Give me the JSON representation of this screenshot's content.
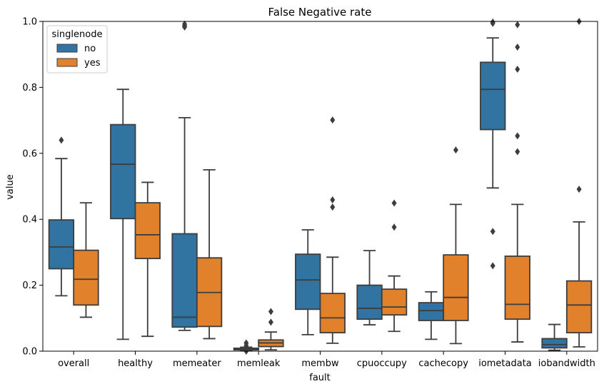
{
  "chart_data": {
    "type": "box",
    "title": "False Negative rate",
    "xlabel": "fault",
    "ylabel": "value",
    "ylim": [
      0,
      1.0
    ],
    "yticks": [
      "0.0",
      "0.2",
      "0.4",
      "0.6",
      "0.8",
      "1.0"
    ],
    "categories": [
      "overall",
      "healthy",
      "memeater",
      "memleak",
      "membw",
      "cpuoccupy",
      "cachecopy",
      "iometadata",
      "iobandwidth"
    ],
    "legend": {
      "title": "singlenode",
      "position": "top-left",
      "entries": [
        "no",
        "yes"
      ]
    },
    "colors": {
      "no": "#3274a1",
      "yes": "#e1812c",
      "line": "#3d3d3d"
    },
    "series": [
      {
        "name": "no",
        "boxes": [
          {
            "whislo": 0.168,
            "q1": 0.25,
            "med": 0.316,
            "q3": 0.398,
            "whishi": 0.584,
            "fliers": [
              0.64
            ]
          },
          {
            "whislo": 0.036,
            "q1": 0.402,
            "med": 0.567,
            "q3": 0.687,
            "whishi": 0.794,
            "fliers": []
          },
          {
            "whislo": 0.063,
            "q1": 0.073,
            "med": 0.103,
            "q3": 0.356,
            "whishi": 0.708,
            "fliers": [
              0.983,
              0.987,
              0.992
            ]
          },
          {
            "whislo": 0.002,
            "q1": 0.004,
            "med": 0.006,
            "q3": 0.009,
            "whishi": 0.012,
            "fliers": [
              0.0,
              0.002,
              0.017,
              0.025
            ]
          },
          {
            "whislo": 0.05,
            "q1": 0.127,
            "med": 0.216,
            "q3": 0.294,
            "whishi": 0.368,
            "fliers": []
          },
          {
            "whislo": 0.08,
            "q1": 0.097,
            "med": 0.13,
            "q3": 0.2,
            "whishi": 0.305,
            "fliers": []
          },
          {
            "whislo": 0.036,
            "q1": 0.093,
            "med": 0.123,
            "q3": 0.147,
            "whishi": 0.18,
            "fliers": []
          },
          {
            "whislo": 0.495,
            "q1": 0.672,
            "med": 0.794,
            "q3": 0.876,
            "whishi": 0.95,
            "fliers": [
              0.259,
              0.363,
              0.994,
              0.998
            ]
          },
          {
            "whislo": 0.003,
            "q1": 0.01,
            "med": 0.02,
            "q3": 0.038,
            "whishi": 0.081,
            "fliers": []
          }
        ]
      },
      {
        "name": "yes",
        "boxes": [
          {
            "whislo": 0.103,
            "q1": 0.14,
            "med": 0.218,
            "q3": 0.306,
            "whishi": 0.45,
            "fliers": []
          },
          {
            "whislo": 0.045,
            "q1": 0.281,
            "med": 0.353,
            "q3": 0.45,
            "whishi": 0.512,
            "fliers": []
          },
          {
            "whislo": 0.038,
            "q1": 0.075,
            "med": 0.178,
            "q3": 0.283,
            "whishi": 0.55,
            "fliers": []
          },
          {
            "whislo": 0.004,
            "q1": 0.014,
            "med": 0.025,
            "q3": 0.034,
            "whishi": 0.058,
            "fliers": [
              0.088,
              0.12
            ]
          },
          {
            "whislo": 0.024,
            "q1": 0.056,
            "med": 0.101,
            "q3": 0.175,
            "whishi": 0.285,
            "fliers": [
              0.437,
              0.459,
              0.701
            ]
          },
          {
            "whislo": 0.06,
            "q1": 0.11,
            "med": 0.134,
            "q3": 0.188,
            "whishi": 0.228,
            "fliers": [
              0.376,
              0.449
            ]
          },
          {
            "whislo": 0.023,
            "q1": 0.093,
            "med": 0.163,
            "q3": 0.292,
            "whishi": 0.445,
            "fliers": [
              0.61
            ]
          },
          {
            "whislo": 0.028,
            "q1": 0.097,
            "med": 0.142,
            "q3": 0.288,
            "whishi": 0.445,
            "fliers": [
              0.605,
              0.653,
              0.855,
              0.922,
              0.99
            ]
          },
          {
            "whislo": 0.013,
            "q1": 0.056,
            "med": 0.14,
            "q3": 0.213,
            "whishi": 0.392,
            "fliers": [
              0.491,
              1.0
            ]
          }
        ]
      }
    ]
  }
}
